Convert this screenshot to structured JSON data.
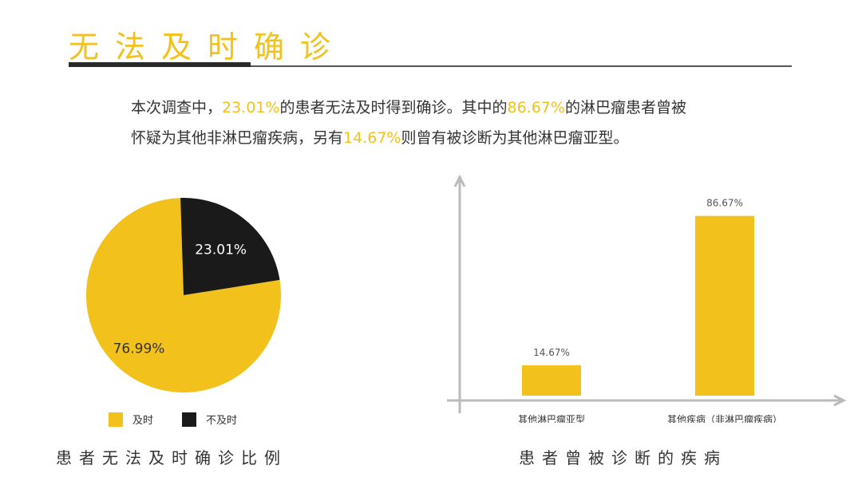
{
  "title": "无法及时确诊",
  "intro": {
    "line1_a": "本次调查中，",
    "line1_hl1": "23.01%",
    "line1_b": "的患者无法及时得到确诊。其中的",
    "line1_hl2": "86.67%",
    "line1_c": "的淋巴瘤患者曾被",
    "line2_a": "怀疑为其他非淋巴瘤疾病，另有",
    "line2_hl": "14.67%",
    "line2_b": "则曾有被诊断为其他淋巴瘤亚型。"
  },
  "colors": {
    "accent": "#f2c11b",
    "dark": "#1a1a1a"
  },
  "captions": {
    "pie": "患者无法及时确诊比例",
    "bar": "患者曾被诊断的疾病"
  },
  "chart_data": [
    {
      "type": "pie",
      "slices": [
        {
          "label": "及时",
          "value": 76.99,
          "display": "76.99%",
          "color": "#f2c11b"
        },
        {
          "label": "不及时",
          "value": 23.01,
          "display": "23.01%",
          "color": "#1a1a1a"
        }
      ],
      "legend_position": "bottom"
    },
    {
      "type": "bar",
      "categories": [
        "其他淋巴瘤亚型",
        "其他疾病（非淋巴瘤疾病）"
      ],
      "values": [
        14.67,
        86.67
      ],
      "labels": [
        "14.67%",
        "86.67%"
      ],
      "ylim": [
        0,
        100
      ],
      "grid": false
    }
  ]
}
